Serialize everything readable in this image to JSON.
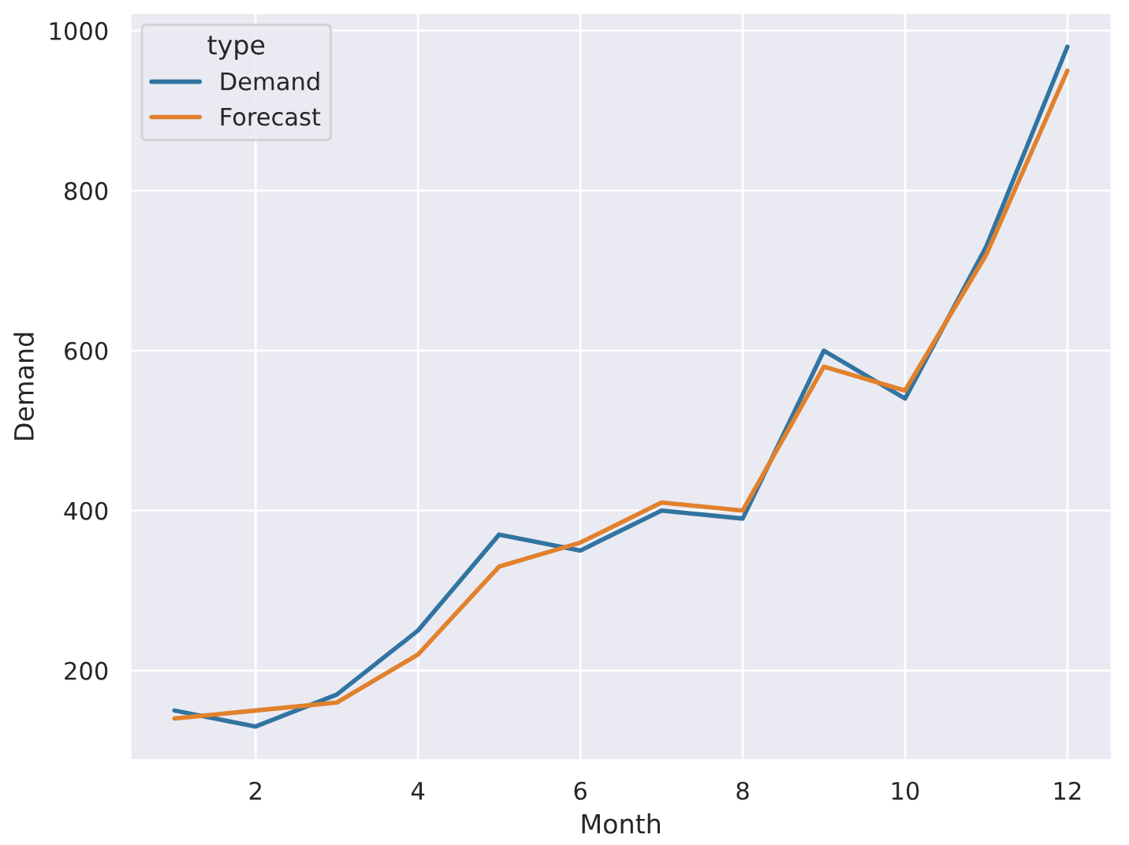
{
  "chart_data": {
    "type": "line",
    "xlabel": "Month",
    "ylabel": "Demand",
    "legend_title": "type",
    "x": [
      1,
      2,
      3,
      4,
      5,
      6,
      7,
      8,
      9,
      10,
      11,
      12
    ],
    "series": [
      {
        "name": "Demand",
        "color": "#3274a1",
        "values": [
          150,
          130,
          170,
          250,
          370,
          350,
          400,
          390,
          600,
          540,
          730,
          980
        ]
      },
      {
        "name": "Forecast",
        "color": "#e1812c",
        "values": [
          140,
          150,
          160,
          220,
          330,
          360,
          410,
          400,
          580,
          550,
          720,
          950
        ]
      }
    ],
    "xlim": [
      0.45,
      12.55
    ],
    "xticks": [
      2,
      4,
      6,
      8,
      10,
      12
    ],
    "ylim": [
      87.5,
      1022.5
    ],
    "yticks": [
      200,
      400,
      600,
      800,
      1000
    ],
    "grid": true,
    "legend": "top left",
    "marker": "none",
    "line_style": "solid"
  }
}
